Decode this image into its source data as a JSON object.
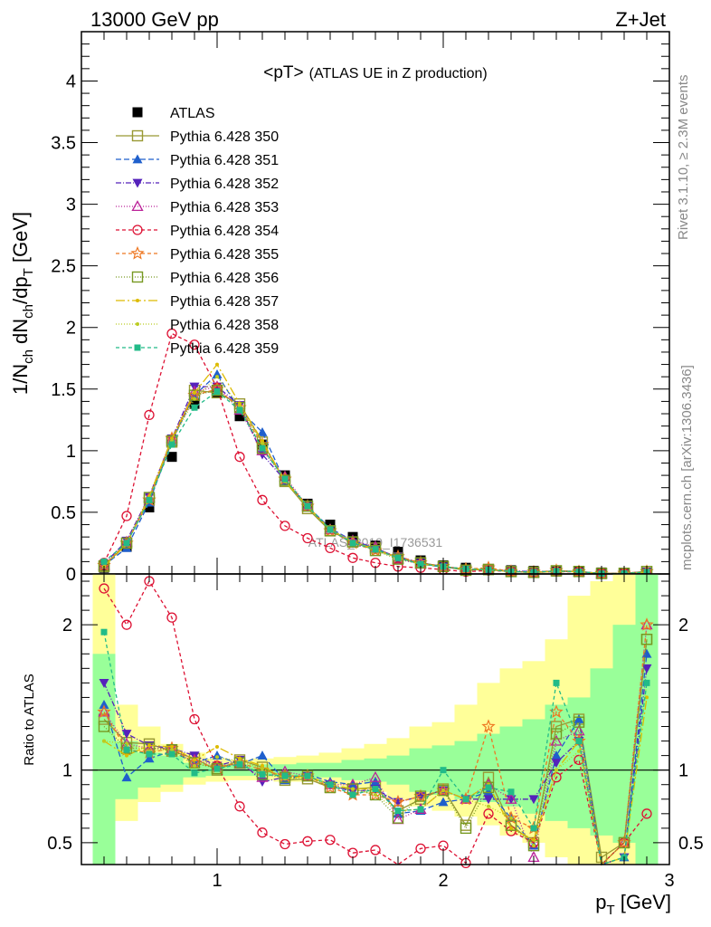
{
  "header": {
    "left": "13000 GeV pp",
    "right": "Z+Jet"
  },
  "side_labels": {
    "top": "Rivet 3.1.10, ≥ 2.3M events",
    "bottom": "mcplots.cern.ch [arXiv:1306.3436]"
  },
  "watermark": "ATLAS_2019_I1736531",
  "colors": {
    "band_inner": "#99ff99",
    "band_outer": "#ffff99",
    "frame": "#000000"
  },
  "chart_data": [
    {
      "type": "line",
      "panel": "main",
      "title": "<pT>",
      "subtitle": "(ATLAS UE in Z production)",
      "ylabel": "1/N_ch dN_ch/dp_T [GeV]",
      "xlim": [
        0.4,
        3.0
      ],
      "ylim": [
        0,
        4.4
      ],
      "yticks": [
        0,
        0.5,
        1,
        1.5,
        2,
        2.5,
        3,
        3.5,
        4
      ],
      "ytick_labels": [
        "0",
        "0.5",
        "1",
        "1.5",
        "2",
        "2.5",
        "3",
        "3.5",
        "4"
      ],
      "legend_position": "upper-left",
      "x": [
        0.5,
        0.6,
        0.7,
        0.8,
        0.9,
        1.0,
        1.1,
        1.2,
        1.3,
        1.4,
        1.5,
        1.6,
        1.7,
        1.8,
        1.9,
        2.0,
        2.1,
        2.2,
        2.3,
        2.4,
        2.5,
        2.6,
        2.7,
        2.8,
        2.9
      ],
      "series": [
        {
          "name": "ATLAS",
          "color": "#000000",
          "marker": "filled-square",
          "dash": "none",
          "values": [
            0.05,
            0.22,
            0.54,
            0.95,
            1.38,
            1.47,
            1.28,
            1.05,
            0.8,
            0.57,
            0.4,
            0.3,
            0.23,
            0.18,
            0.11,
            0.07,
            0.05,
            0.04,
            0.03,
            0.025,
            0.02,
            0.015,
            0.012,
            0.01,
            0.01
          ]
        },
        {
          "name": "Pythia 6.428 350",
          "color": "#999933",
          "marker": "open-square",
          "dash": "solid",
          "values": [
            0.06,
            0.25,
            0.6,
            1.07,
            1.49,
            1.47,
            1.38,
            1.07,
            0.75,
            0.53,
            0.35,
            0.26,
            0.21,
            0.13,
            0.09,
            0.06,
            0.03,
            0.038,
            0.02,
            0.015,
            0.026,
            0.02,
            0.004,
            0.005,
            0.02
          ]
        },
        {
          "name": "Pythia 6.428 351",
          "color": "#1f5fcc",
          "marker": "filled-triangle-up",
          "dash": "6,3",
          "values": [
            0.07,
            0.21,
            0.58,
            1.08,
            1.45,
            1.62,
            1.33,
            1.15,
            0.75,
            0.55,
            0.37,
            0.27,
            0.21,
            0.13,
            0.08,
            0.055,
            0.04,
            0.035,
            0.02,
            0.012,
            0.022,
            0.02,
            0.003,
            0.004,
            0.018
          ]
        },
        {
          "name": "Pythia 6.428 352",
          "color": "#5522bb",
          "marker": "filled-triangle-down",
          "dash": "6,2,1,2",
          "values": [
            0.08,
            0.27,
            0.63,
            1.1,
            1.52,
            1.52,
            1.37,
            0.97,
            0.76,
            0.55,
            0.36,
            0.25,
            0.2,
            0.14,
            0.09,
            0.06,
            0.04,
            0.032,
            0.024,
            0.02,
            0.021,
            0.018,
            0.003,
            0.004,
            0.017
          ]
        },
        {
          "name": "Pythia 6.428 353",
          "color": "#bb2299",
          "marker": "open-triangle-up",
          "dash": "1,2",
          "values": [
            0.07,
            0.26,
            0.62,
            1.1,
            1.48,
            1.52,
            1.33,
            1.0,
            0.79,
            0.55,
            0.36,
            0.27,
            0.22,
            0.12,
            0.08,
            0.06,
            0.04,
            0.036,
            0.024,
            0.01,
            0.024,
            0.019,
            0.004,
            0.005,
            0.02
          ]
        },
        {
          "name": "Pythia 6.428 354",
          "color": "#dd1133",
          "marker": "open-circle",
          "dash": "4,3",
          "values": [
            0.09,
            0.47,
            1.29,
            1.95,
            1.86,
            1.51,
            0.95,
            0.6,
            0.39,
            0.29,
            0.21,
            0.13,
            0.09,
            0.06,
            0.05,
            0.035,
            0.018,
            0.028,
            0.02,
            0.012,
            0.019,
            0.016,
            0.004,
            0.005,
            0.007
          ]
        },
        {
          "name": "Pythia 6.428 355",
          "color": "#ee7722",
          "marker": "open-star",
          "dash": "4,3",
          "values": [
            0.07,
            0.25,
            0.6,
            1.1,
            1.45,
            1.5,
            1.35,
            1.05,
            0.77,
            0.55,
            0.35,
            0.25,
            0.19,
            0.14,
            0.09,
            0.06,
            0.04,
            0.05,
            0.02,
            0.015,
            0.028,
            0.018,
            0.004,
            0.005,
            0.02
          ]
        },
        {
          "name": "Pythia 6.428 356",
          "color": "#779922",
          "marker": "open-square",
          "dash": "1,2",
          "values": [
            0.065,
            0.25,
            0.62,
            1.08,
            1.45,
            1.49,
            1.35,
            1.02,
            0.76,
            0.55,
            0.35,
            0.26,
            0.19,
            0.12,
            0.09,
            0.06,
            0.03,
            0.035,
            0.019,
            0.012,
            0.025,
            0.02,
            0.004,
            0.005,
            0.019
          ]
        },
        {
          "name": "Pythia 6.428 357",
          "color": "#ddbb00",
          "marker": "dot",
          "dash": "10,3,2,3",
          "values": [
            0.06,
            0.24,
            0.63,
            1.1,
            1.47,
            1.7,
            1.38,
            1.08,
            0.75,
            0.55,
            0.36,
            0.26,
            0.2,
            0.13,
            0.08,
            0.06,
            0.04,
            0.036,
            0.018,
            0.013,
            0.02,
            0.018,
            0.003,
            0.004,
            0.015
          ]
        },
        {
          "name": "Pythia 6.428 358",
          "color": "#bbcc22",
          "marker": "dot",
          "dash": "1,2",
          "values": [
            0.06,
            0.26,
            0.61,
            1.08,
            1.42,
            1.6,
            1.36,
            1.06,
            0.75,
            0.54,
            0.36,
            0.26,
            0.19,
            0.13,
            0.08,
            0.06,
            0.04,
            0.03,
            0.02,
            0.012,
            0.02,
            0.017,
            0.003,
            0.004,
            0.016
          ]
        },
        {
          "name": "Pythia 6.428 359",
          "color": "#22bb88",
          "marker": "filled-square-small",
          "dash": "4,3",
          "values": [
            0.1,
            0.25,
            0.6,
            1.05,
            1.35,
            1.48,
            1.33,
            1.02,
            0.77,
            0.55,
            0.36,
            0.25,
            0.2,
            0.13,
            0.08,
            0.06,
            0.04,
            0.035,
            0.02,
            0.015,
            0.023,
            0.018,
            0.003,
            0.004,
            0.016
          ]
        }
      ]
    },
    {
      "type": "line",
      "panel": "ratio",
      "ylabel": "Ratio to ATLAS",
      "xlabel": "p_T [GeV]",
      "xlim": [
        0.4,
        3.0
      ],
      "ylim": [
        0.35,
        2.35
      ],
      "xticks": [
        1,
        2,
        3
      ],
      "xtick_labels": [
        "1",
        "2",
        "3"
      ],
      "yticks": [
        0.5,
        1,
        2
      ],
      "ytick_labels": [
        "0.5",
        "1",
        "2"
      ],
      "reference_line": 1,
      "x": [
        0.5,
        0.6,
        0.7,
        0.8,
        0.9,
        1.0,
        1.1,
        1.2,
        1.3,
        1.4,
        1.5,
        1.6,
        1.7,
        1.8,
        1.9,
        2.0,
        2.1,
        2.2,
        2.3,
        2.4,
        2.5,
        2.6,
        2.7,
        2.8,
        2.9
      ],
      "bands": {
        "inner_lo": [
          0.3,
          0.8,
          0.88,
          0.9,
          0.95,
          0.96,
          0.96,
          0.96,
          0.96,
          0.95,
          0.95,
          0.93,
          0.92,
          0.9,
          0.85,
          0.83,
          0.8,
          0.78,
          0.75,
          0.7,
          0.65,
          0.6,
          0.55,
          0.5,
          0.3
        ],
        "inner_hi": [
          1.8,
          1.2,
          1.12,
          1.1,
          1.05,
          1.04,
          1.04,
          1.04,
          1.04,
          1.05,
          1.05,
          1.07,
          1.08,
          1.1,
          1.15,
          1.17,
          1.2,
          1.25,
          1.3,
          1.35,
          1.45,
          1.5,
          1.7,
          2.0,
          2.35
        ],
        "outer_lo": [
          0.3,
          0.65,
          0.78,
          0.85,
          0.9,
          0.92,
          0.93,
          0.93,
          0.92,
          0.92,
          0.9,
          0.88,
          0.85,
          0.8,
          0.75,
          0.72,
          0.68,
          0.62,
          0.55,
          0.5,
          0.4,
          0.35,
          0.35,
          0.35,
          0.3
        ],
        "outer_hi": [
          2.35,
          1.45,
          1.3,
          1.18,
          1.12,
          1.08,
          1.07,
          1.08,
          1.09,
          1.1,
          1.12,
          1.15,
          1.18,
          1.22,
          1.3,
          1.33,
          1.45,
          1.6,
          1.7,
          1.75,
          1.9,
          2.2,
          2.3,
          2.35,
          2.35
        ]
      },
      "series": [
        {
          "name": "Pythia 6.428 350",
          "color": "#999933",
          "marker": "open-square",
          "dash": "solid",
          "values": [
            1.35,
            1.19,
            1.18,
            1.13,
            1.08,
            1.0,
            1.07,
            1.02,
            0.93,
            0.94,
            0.88,
            0.87,
            0.88,
            0.72,
            0.8,
            0.87,
            0.62,
            0.95,
            0.62,
            0.5,
            1.3,
            1.35,
            0.4,
            0.5,
            1.9
          ]
        },
        {
          "name": "Pythia 6.428 351",
          "color": "#1f5fcc",
          "marker": "filled-triangle-up",
          "dash": "6,3",
          "values": [
            1.45,
            0.95,
            1.08,
            1.13,
            1.05,
            1.1,
            1.04,
            1.1,
            0.93,
            0.97,
            0.92,
            0.9,
            0.92,
            0.7,
            0.72,
            0.78,
            0.8,
            0.85,
            0.67,
            0.48,
            1.1,
            1.35,
            0.3,
            0.4,
            1.8
          ]
        },
        {
          "name": "Pythia 6.428 352",
          "color": "#5522bb",
          "marker": "filled-triangle-down",
          "dash": "6,2,1,2",
          "values": [
            1.6,
            1.25,
            1.17,
            1.15,
            1.1,
            1.03,
            1.07,
            0.92,
            0.95,
            0.96,
            0.9,
            0.85,
            0.87,
            0.78,
            0.82,
            0.86,
            0.8,
            0.8,
            0.8,
            0.8,
            1.05,
            1.2,
            0.25,
            0.4,
            1.7
          ]
        },
        {
          "name": "Pythia 6.428 353",
          "color": "#bb2299",
          "marker": "open-triangle-up",
          "dash": "1,2",
          "values": [
            1.4,
            1.18,
            1.15,
            1.15,
            1.07,
            1.03,
            1.04,
            0.95,
            0.99,
            0.96,
            0.9,
            0.9,
            0.95,
            0.66,
            0.73,
            0.86,
            0.8,
            0.9,
            0.8,
            0.4,
            1.2,
            1.27,
            0.33,
            0.5,
            2.0
          ]
        },
        {
          "name": "Pythia 6.428 354",
          "color": "#dd1133",
          "marker": "open-circle",
          "dash": "4,3",
          "values": [
            2.25,
            2.0,
            2.3,
            2.05,
            1.35,
            1.03,
            0.75,
            0.57,
            0.49,
            0.51,
            0.52,
            0.43,
            0.45,
            0.32,
            0.46,
            0.48,
            0.36,
            0.7,
            0.58,
            0.5,
            0.95,
            1.07,
            0.33,
            0.5,
            0.7
          ]
        },
        {
          "name": "Pythia 6.428 355",
          "color": "#ee7722",
          "marker": "open-star",
          "dash": "4,3",
          "values": [
            1.4,
            1.14,
            1.12,
            1.15,
            1.05,
            1.02,
            1.05,
            1.0,
            0.96,
            0.96,
            0.88,
            0.83,
            0.83,
            0.78,
            0.82,
            0.86,
            0.8,
            1.3,
            0.67,
            0.6,
            1.4,
            1.2,
            0.33,
            0.5,
            2.0
          ]
        },
        {
          "name": "Pythia 6.428 356",
          "color": "#779922",
          "marker": "open-square",
          "dash": "1,2",
          "values": [
            1.3,
            1.15,
            1.15,
            1.14,
            1.05,
            1.01,
            1.05,
            0.97,
            0.95,
            0.96,
            0.88,
            0.87,
            0.83,
            0.67,
            0.82,
            0.86,
            0.6,
            0.88,
            0.62,
            0.48,
            1.25,
            1.33,
            0.33,
            0.5,
            1.9
          ]
        },
        {
          "name": "Pythia 6.428 357",
          "color": "#ddbb00",
          "marker": "dot",
          "dash": "10,3,2,3",
          "values": [
            1.2,
            1.1,
            1.17,
            1.16,
            1.07,
            1.16,
            1.08,
            1.03,
            0.94,
            0.96,
            0.9,
            0.87,
            0.87,
            0.72,
            0.73,
            0.86,
            0.8,
            0.9,
            0.6,
            0.52,
            1.0,
            1.2,
            0.25,
            0.4,
            1.5
          ]
        },
        {
          "name": "Pythia 6.428 358",
          "color": "#bbcc22",
          "marker": "dot",
          "dash": "1,2",
          "values": [
            1.2,
            1.18,
            1.13,
            1.14,
            1.03,
            1.09,
            1.06,
            1.01,
            0.94,
            0.95,
            0.9,
            0.87,
            0.83,
            0.72,
            0.73,
            0.86,
            0.8,
            0.75,
            0.67,
            0.48,
            1.0,
            1.13,
            0.25,
            0.4,
            1.6
          ]
        },
        {
          "name": "Pythia 6.428 359",
          "color": "#22bb88",
          "marker": "filled-square-small",
          "dash": "4,3",
          "values": [
            1.95,
            1.14,
            1.11,
            1.11,
            0.98,
            1.01,
            1.04,
            0.97,
            0.96,
            0.96,
            0.9,
            0.83,
            0.87,
            0.72,
            0.73,
            1.0,
            0.8,
            0.88,
            0.85,
            0.6,
            1.6,
            1.2,
            0.25,
            0.4,
            1.6
          ]
        }
      ]
    }
  ]
}
